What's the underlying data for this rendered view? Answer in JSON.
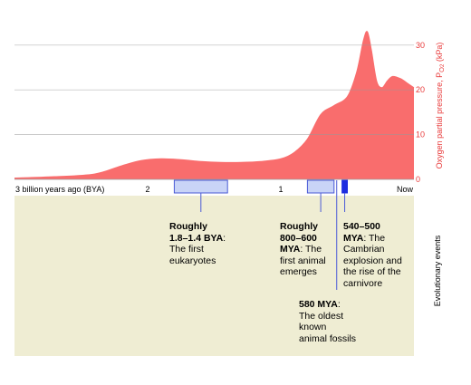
{
  "chart_data": {
    "type": "area",
    "title": "",
    "xlabel": "",
    "ylabel": "Oxygen partial pressure, P",
    "ylabel_sub": "O2",
    "ylabel_unit": " (kPa)",
    "xlim": [
      3,
      0
    ],
    "ylim": [
      0,
      33
    ],
    "y_ticks": [
      0,
      10,
      20,
      30
    ],
    "x_tick_labels": [
      {
        "x": 3,
        "label": "3 billion years ago (BYA)"
      },
      {
        "x": 2,
        "label": "2"
      },
      {
        "x": 1,
        "label": "1"
      },
      {
        "x": 0,
        "label": "Now"
      }
    ],
    "grid": true,
    "series": [
      {
        "x": [
          3.0,
          2.7,
          2.4,
          2.2,
          2.05,
          1.9,
          1.75,
          1.6,
          1.45,
          1.3,
          1.15,
          1.0,
          0.9,
          0.8,
          0.7,
          0.6,
          0.5,
          0.43,
          0.38,
          0.35,
          0.32,
          0.28,
          0.24,
          0.2,
          0.16,
          0.1,
          0.05,
          0.0
        ],
        "y": [
          0.3,
          0.6,
          1.2,
          3.0,
          4.2,
          4.6,
          4.4,
          4.0,
          3.8,
          3.8,
          4.0,
          4.6,
          6.0,
          9.0,
          14.5,
          16.5,
          18.5,
          24.0,
          31.0,
          33.0,
          29.0,
          22.0,
          20.5,
          22.0,
          23.0,
          22.5,
          21.5,
          20.5
        ]
      }
    ],
    "events_label": "Evolutionary events",
    "events": [
      {
        "range": [
          1.8,
          1.4
        ],
        "title": "Roughly\n1.8–1.4 BYA",
        "text": ":\nThe first\neukaryotes"
      },
      {
        "range": [
          0.8,
          0.6
        ],
        "title": "Roughly\n800–600\nMYA",
        "text": ": The\nfirst animal\nemerges"
      },
      {
        "range": [
          0.58,
          0.58
        ],
        "title": "580 MYA",
        "text": ":\nThe oldest\nknown\nanimal fossils"
      },
      {
        "range": [
          0.54,
          0.5
        ],
        "title": "540–500\nMYA",
        "text": ": The\nCambrian\nexplosion and\nthe rise of the\ncarnivore"
      }
    ]
  },
  "colors": {
    "fill": "#f96d6d",
    "line": "#e83a3a",
    "panel": "#efedd3",
    "box": "#c9d4f7",
    "box_stroke": "#4a5ad6",
    "solid": "#1e2de0"
  }
}
